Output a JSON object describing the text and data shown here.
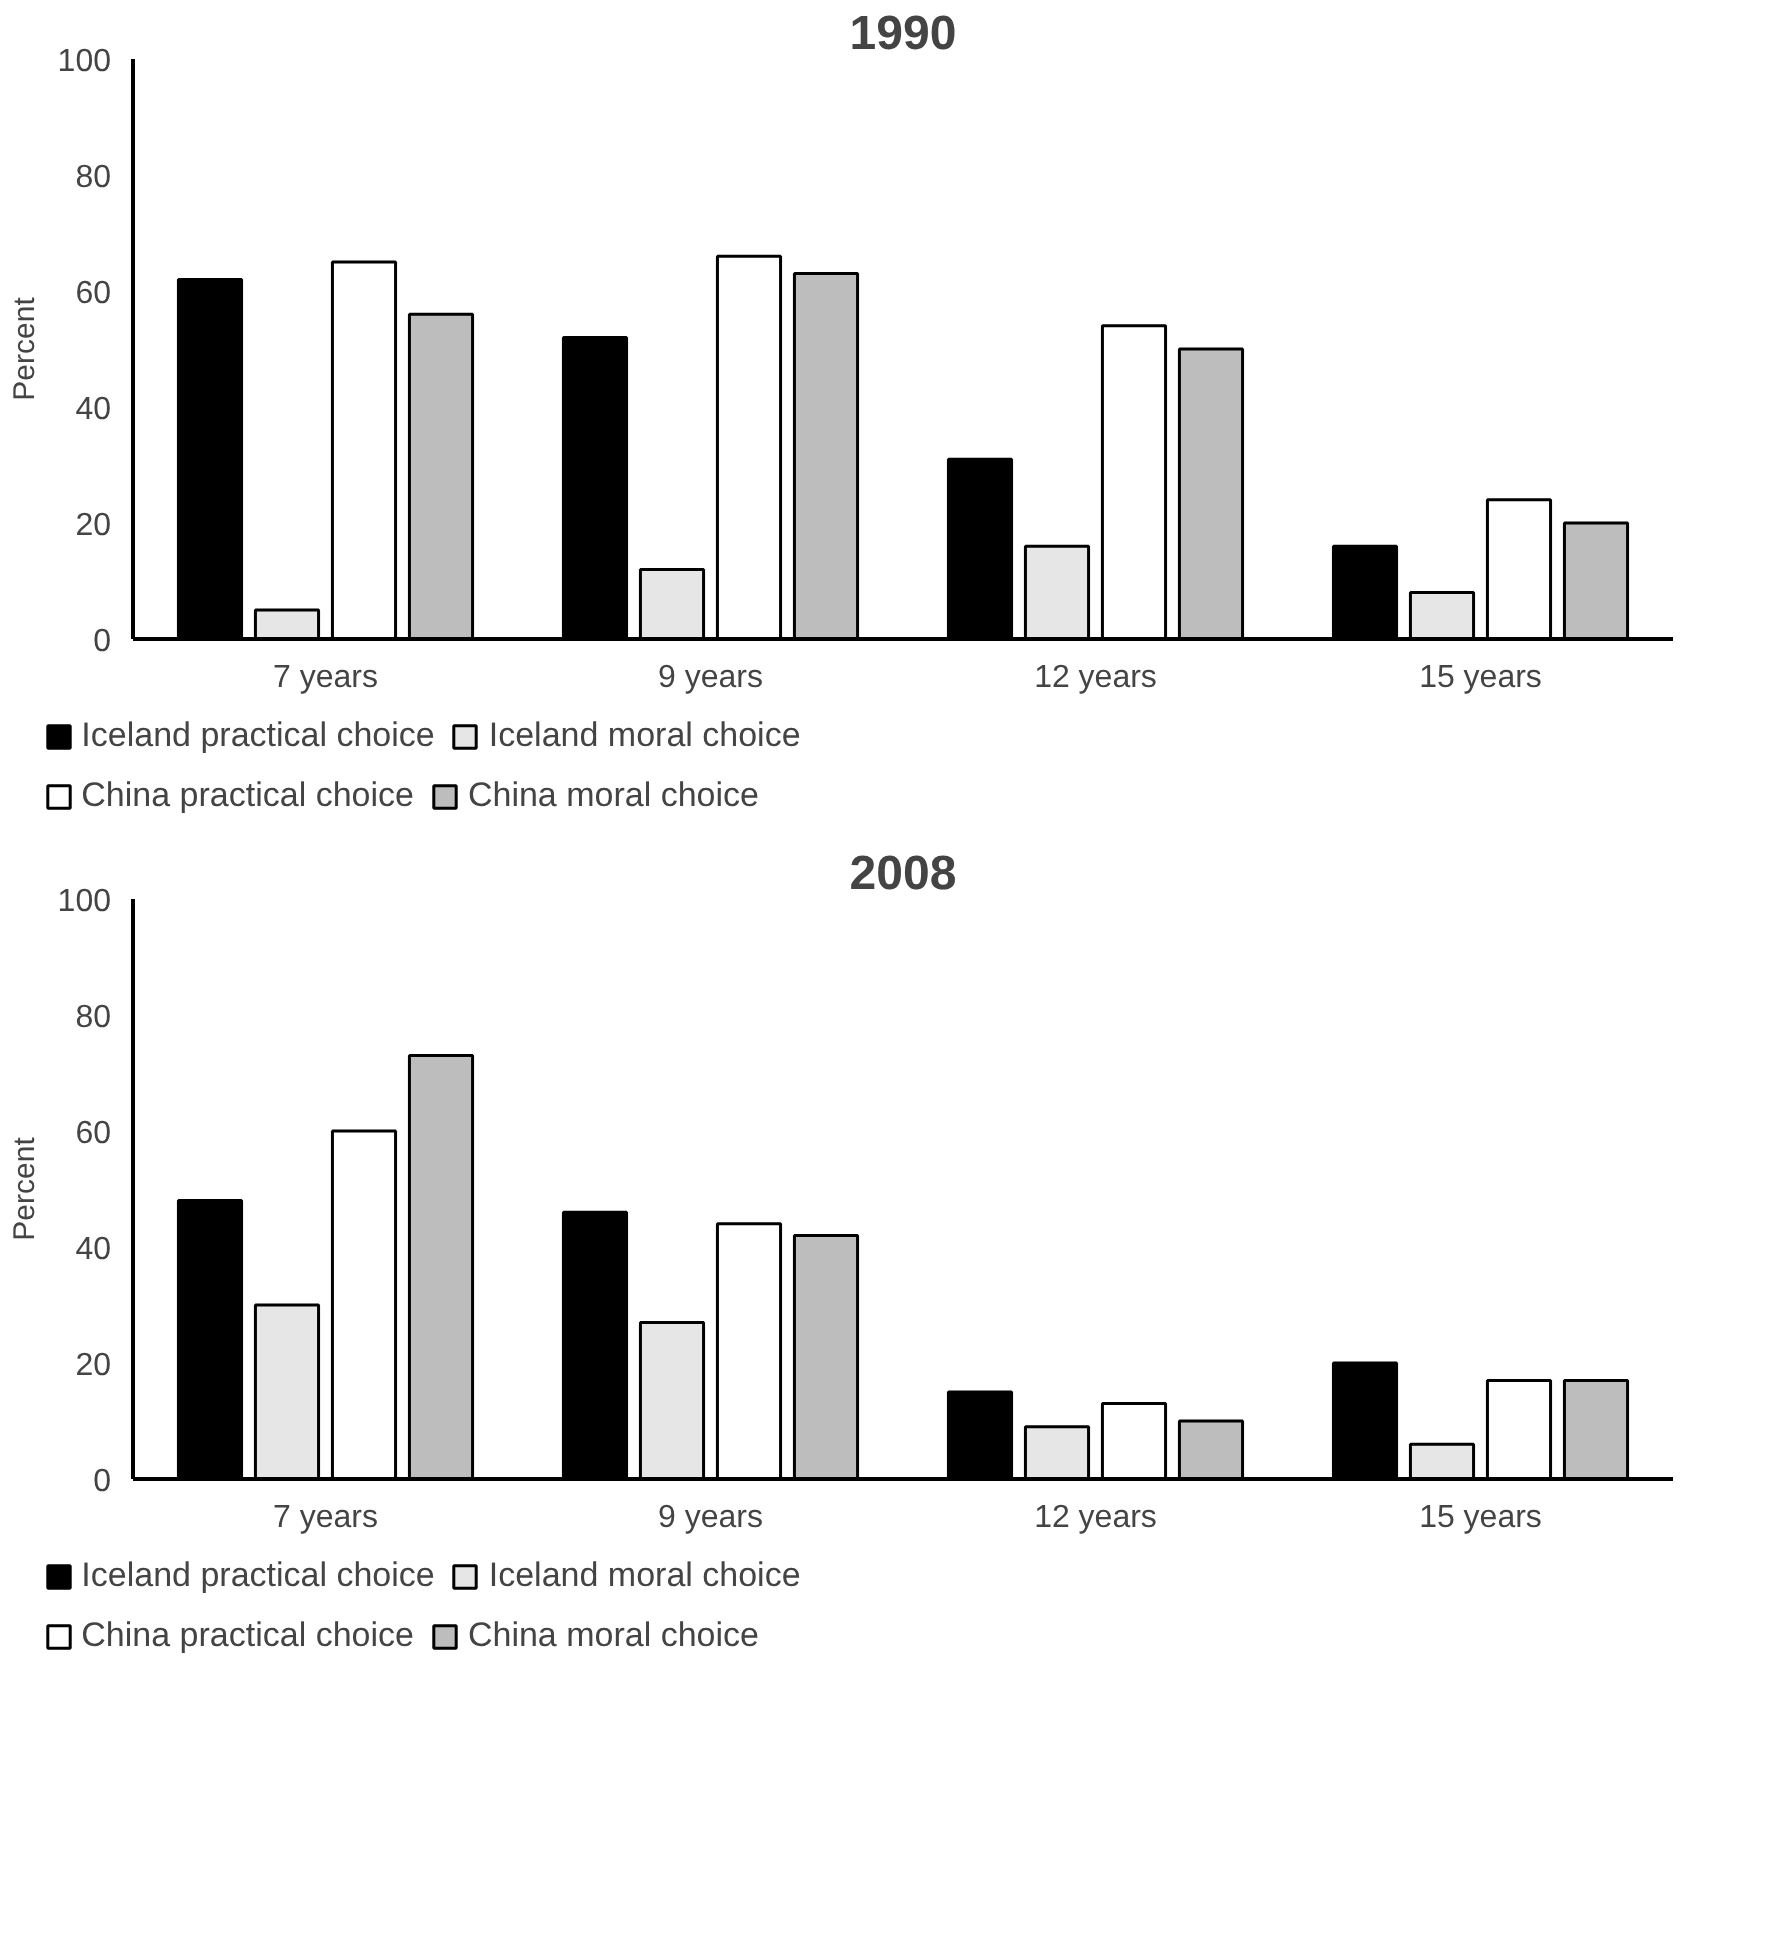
{
  "chart_data": [
    {
      "type": "bar",
      "title": "1990",
      "ylabel": "Percent",
      "categories": [
        "7 years",
        "9 years",
        "12 years",
        "15 years"
      ],
      "series": [
        {
          "name": "Iceland practical choice",
          "color": "#000000",
          "values": [
            62,
            52,
            31,
            16
          ]
        },
        {
          "name": "Iceland moral choice",
          "color": "#e6e6e6",
          "values": [
            5,
            12,
            16,
            8
          ]
        },
        {
          "name": "China practical choice",
          "color": "#ffffff",
          "values": [
            65,
            66,
            54,
            24
          ]
        },
        {
          "name": "China moral choice",
          "color": "#bdbdbd",
          "values": [
            56,
            63,
            50,
            20
          ]
        }
      ],
      "ylim": [
        0,
        100
      ],
      "yticks": [
        0,
        20,
        40,
        60,
        80,
        100
      ],
      "grid": false,
      "legend": "bottom"
    },
    {
      "type": "bar",
      "title": "2008",
      "ylabel": "Percent",
      "categories": [
        "7 years",
        "9 years",
        "12 years",
        "15 years"
      ],
      "series": [
        {
          "name": "Iceland practical choice",
          "color": "#000000",
          "values": [
            48,
            46,
            15,
            20
          ]
        },
        {
          "name": "Iceland moral choice",
          "color": "#e6e6e6",
          "values": [
            30,
            27,
            9,
            6
          ]
        },
        {
          "name": "China practical choice",
          "color": "#ffffff",
          "values": [
            60,
            44,
            13,
            17
          ]
        },
        {
          "name": "China moral choice",
          "color": "#bdbdbd",
          "values": [
            73,
            42,
            10,
            17
          ]
        }
      ],
      "ylim": [
        0,
        100
      ],
      "yticks": [
        0,
        20,
        40,
        60,
        80,
        100
      ],
      "grid": false,
      "legend": "bottom"
    }
  ]
}
